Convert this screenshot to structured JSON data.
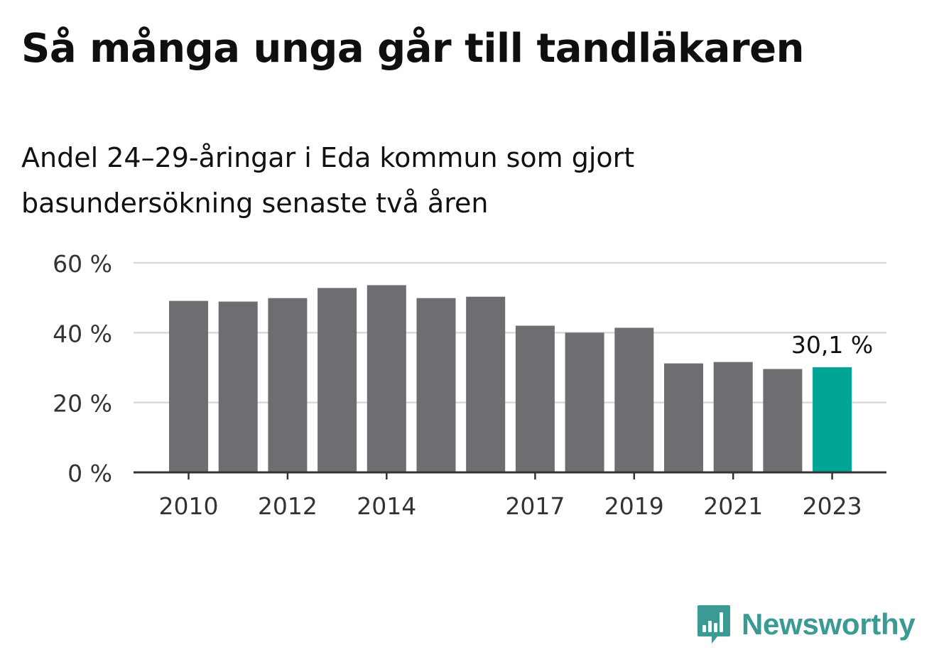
{
  "title": "Så många unga går till tandläkaren",
  "subtitle": "Andel 24–29-åringar i Eda kommun som gjort basundersökning senaste två åren",
  "brand": "Newsworthy",
  "colors": {
    "bar": "#6e6d72",
    "highlight": "#00a598",
    "grid": "#d9d9d9",
    "axis": "#333333",
    "brand": "#3b9a93"
  },
  "chart_data": {
    "type": "bar",
    "categories": [
      "2010",
      "2011",
      "2012",
      "2013",
      "2014",
      "2015",
      "2016",
      "2017",
      "2018",
      "2019",
      "2020",
      "2021",
      "2022",
      "2023"
    ],
    "values": [
      49.1,
      48.9,
      49.9,
      52.8,
      53.6,
      49.9,
      50.3,
      42.0,
      40.0,
      41.4,
      31.2,
      31.6,
      29.6,
      30.1
    ],
    "x_tick_labels": [
      "2010",
      "2012",
      "2014",
      "2017",
      "2019",
      "2021",
      "2023"
    ],
    "y_ticks": [
      0,
      20,
      40,
      60
    ],
    "y_tick_labels": [
      "0 %",
      "20 %",
      "40 %",
      "60 %"
    ],
    "ylim": [
      0,
      60
    ],
    "highlight_category": "2023",
    "highlight_label": "30,1 %",
    "grid": true
  }
}
